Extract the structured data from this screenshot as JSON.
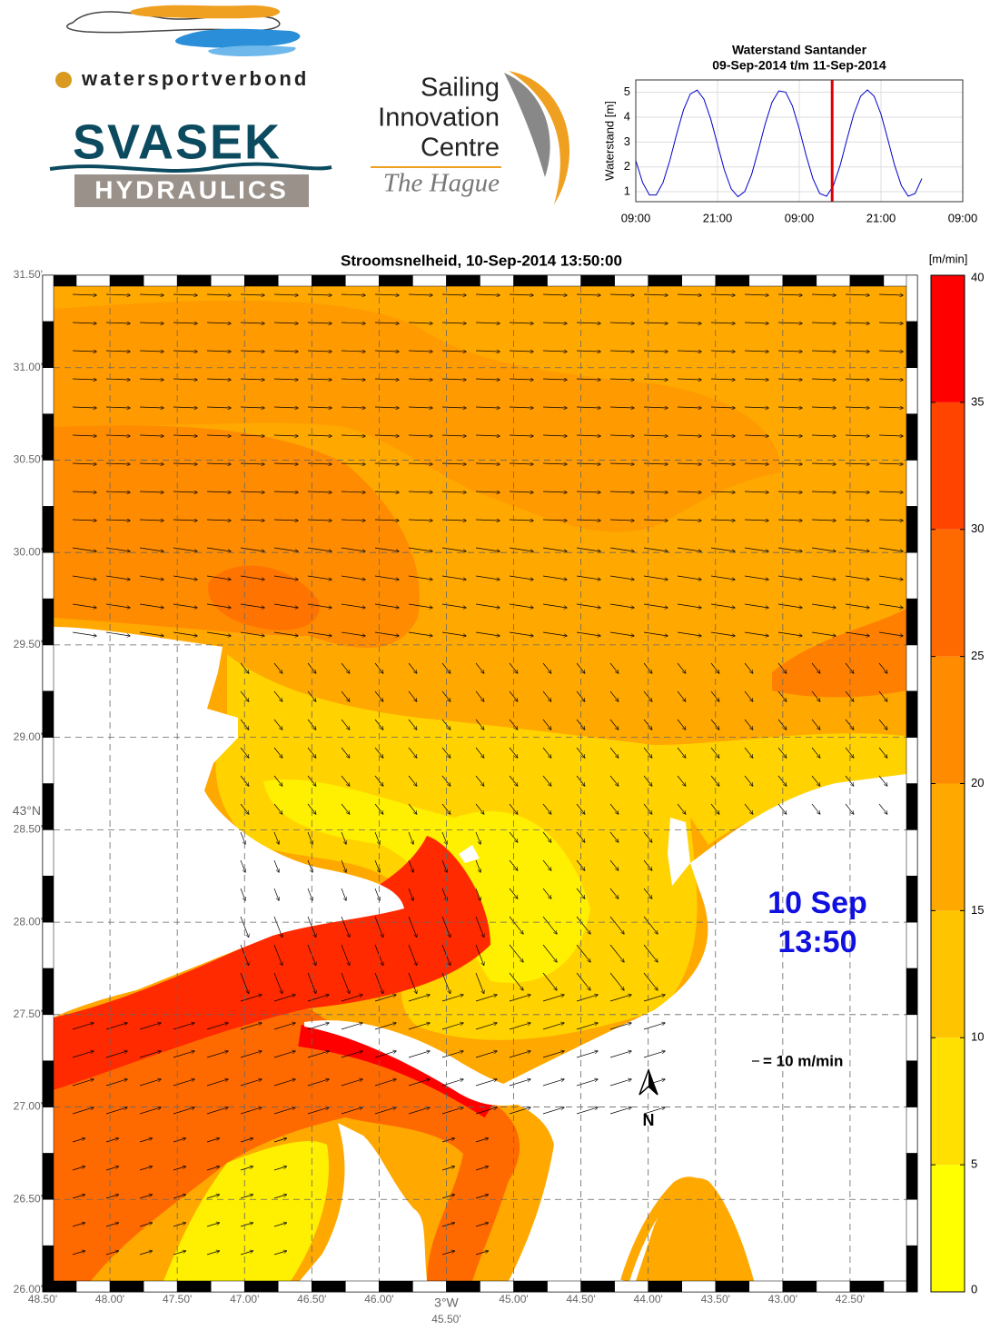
{
  "logos": {
    "watersportverbond": "watersportverbond",
    "svasek": "SVASEK",
    "hydraulics": "HYDRAULICS",
    "sailing": [
      "Sailing",
      "Innovation",
      "Centre"
    ],
    "hague": "The Hague"
  },
  "chart_data": [
    {
      "type": "line",
      "title": "Waterstand Santander",
      "subtitle": "09-Sep-2014 t/m 11-Sep-2014",
      "y_label": "Waterstand [m]",
      "x": [
        0,
        1,
        2,
        3,
        4,
        5,
        6,
        7,
        8,
        9,
        10,
        11,
        12,
        13,
        14,
        15,
        16,
        17,
        18,
        19,
        20,
        21,
        22,
        23,
        24,
        25,
        26,
        27,
        28,
        29,
        30,
        31,
        32,
        33,
        34,
        35,
        36,
        37,
        38,
        39,
        40,
        41,
        42
      ],
      "values": [
        2.26,
        1.37,
        0.87,
        0.87,
        1.37,
        2.26,
        3.32,
        4.29,
        4.93,
        5.09,
        4.73,
        3.93,
        2.9,
        1.88,
        1.12,
        0.8,
        1.01,
        1.69,
        2.68,
        3.73,
        4.6,
        5.06,
        5.01,
        4.45,
        3.53,
        2.47,
        1.53,
        0.93,
        0.82,
        1.24,
        2.06,
        3.11,
        4.12,
        4.84,
        5.1,
        4.84,
        4.12,
        3.11,
        2.06,
        1.24,
        0.82,
        0.93,
        1.53
      ],
      "color": "#0000cc",
      "xlim": [
        0,
        48
      ],
      "xticks": [
        {
          "value": 0,
          "label": "09:00"
        },
        {
          "value": 12,
          "label": "21:00"
        },
        {
          "value": 24,
          "label": "09:00"
        },
        {
          "value": 36,
          "label": "21:00"
        },
        {
          "value": 48,
          "label": "09:00"
        }
      ],
      "ylim": [
        0.6,
        5.5
      ],
      "yticks": [
        1,
        2,
        3,
        4,
        5
      ],
      "grid": true,
      "marker_x": 28.83,
      "marker_color": "#e00000"
    },
    {
      "type": "map",
      "title": "Stroomsnelheid, 10-Sep-2014 13:50:00",
      "xlim": [
        48.5,
        42.0
      ],
      "xticks": [
        {
          "value": 48.5,
          "label": "48.50'"
        },
        {
          "value": 48.0,
          "label": "48.00'"
        },
        {
          "value": 47.5,
          "label": "47.50'"
        },
        {
          "value": 47.0,
          "label": "47.00'"
        },
        {
          "value": 46.5,
          "label": "46.50'"
        },
        {
          "value": 46.0,
          "label": "46.00'"
        },
        {
          "value": 45.5,
          "label": "45.50'"
        },
        {
          "value": 45.0,
          "label": "45.00'"
        },
        {
          "value": 44.5,
          "label": "44.50'"
        },
        {
          "value": 44.0,
          "label": "44.00'"
        },
        {
          "value": 43.5,
          "label": "43.50'"
        },
        {
          "value": 43.0,
          "label": "43.00'"
        },
        {
          "value": 42.5,
          "label": "42.50'"
        }
      ],
      "ylim": [
        26.0,
        31.5
      ],
      "yticks": [
        {
          "value": 26.0,
          "label": "26.00'"
        },
        {
          "value": 26.5,
          "label": "26.50'"
        },
        {
          "value": 27.0,
          "label": "27.00'"
        },
        {
          "value": 27.5,
          "label": "27.50'"
        },
        {
          "value": 28.0,
          "label": "28.00'"
        },
        {
          "value": 28.5,
          "label": "28.50'"
        },
        {
          "value": 29.0,
          "label": "29.00'"
        },
        {
          "value": 29.5,
          "label": "29.50'"
        },
        {
          "value": 30.0,
          "label": "30.00'"
        },
        {
          "value": 30.5,
          "label": "30.50'"
        },
        {
          "value": 31.0,
          "label": "31.00'"
        },
        {
          "value": 31.5,
          "label": "31.50'"
        }
      ],
      "x_degree": {
        "value": 45.5,
        "label": "3°W"
      },
      "y_degree": {
        "value": 28.5,
        "label": "43°N"
      },
      "grid": true,
      "annotations": {
        "date": "10 Sep",
        "time": "13:50",
        "scale": "= 10 m/min",
        "north": "N"
      },
      "colorbar": {
        "label": "[m/min]",
        "lim": [
          0,
          40
        ],
        "ticks": [
          0,
          5,
          10,
          15,
          20,
          25,
          30,
          35,
          40
        ],
        "colors": [
          "#ffff00",
          "#ffe000",
          "#ffc400",
          "#ffa800",
          "#ff8c00",
          "#ff6a00",
          "#ff4400",
          "#ff0000"
        ]
      }
    }
  ]
}
